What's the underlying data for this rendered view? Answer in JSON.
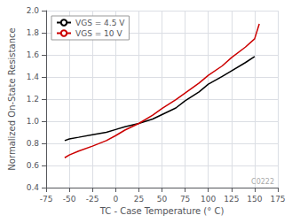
{
  "chart_data": {
    "type": "line",
    "xlabel": "TC - Case Temperature (° C)",
    "ylabel": "Normalized On-State Resistance",
    "annotation": "C0222",
    "xlim": [
      -75,
      175
    ],
    "ylim": [
      0.4,
      2.0
    ],
    "xticks": [
      -75,
      -50,
      -25,
      0,
      25,
      50,
      75,
      100,
      125,
      150,
      175
    ],
    "yticks": [
      0.4,
      0.6,
      0.8,
      {
        "value": 1.0,
        "label": "1.0"
      },
      1.2,
      1.4,
      1.6,
      1.8,
      {
        "value": 2.0,
        "label": "2.0"
      }
    ],
    "grid": true,
    "legend": "upper left",
    "series": [
      {
        "name": "VGS = 4.5 V",
        "color": "#000000",
        "x": [
          -55,
          -50,
          -40,
          -25,
          -10,
          0,
          10,
          25,
          40,
          50,
          65,
          75,
          90,
          100,
          115,
          125,
          140,
          150
        ],
        "values": [
          0.825,
          0.84,
          0.855,
          0.878,
          0.9,
          0.925,
          0.95,
          0.98,
          1.02,
          1.06,
          1.12,
          1.185,
          1.265,
          1.335,
          1.405,
          1.455,
          1.53,
          1.585
        ]
      },
      {
        "name": "VGS = 10 V",
        "color": "#cc0000",
        "x": [
          -55,
          -50,
          -40,
          -25,
          -10,
          0,
          10,
          25,
          40,
          50,
          65,
          75,
          90,
          100,
          115,
          125,
          140,
          150,
          155
        ],
        "values": [
          0.67,
          0.695,
          0.73,
          0.775,
          0.825,
          0.87,
          0.92,
          0.98,
          1.055,
          1.115,
          1.195,
          1.255,
          1.345,
          1.415,
          1.5,
          1.575,
          1.67,
          1.745,
          1.88
        ]
      }
    ]
  }
}
